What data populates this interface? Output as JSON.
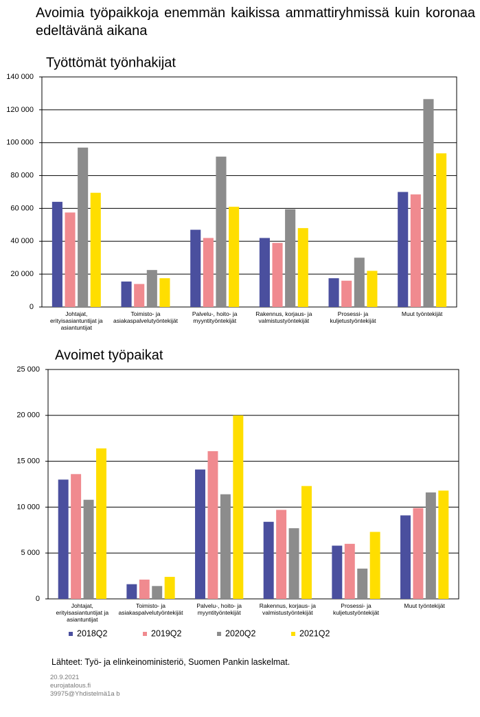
{
  "title": "Avoimia työpaikkoja enemmän kaikissa ammattiryhmissä kuin koronaa edeltävänä aikana",
  "source": "Lähteet: Työ- ja elinkeinoministeriö, Suomen Pankin laskelmat.",
  "footer": [
    "20.9.2021",
    "eurojatalous.fi",
    "39975@Yhdistelmä1a b"
  ],
  "chart_data": [
    {
      "type": "bar",
      "title": "Työttömät työnhakijat",
      "categories": [
        "Johtajat, erityisasiantuntijat ja asiantuntijat",
        "Toimisto- ja asiakaspalvelutyöntekijät",
        "Palvelu-, hoito- ja myyntityöntekijät",
        "Rakennus, korjaus- ja valmistustyöntekijät",
        "Prosessi- ja kuljetustyöntekijät",
        "Muut työntekijät"
      ],
      "series": [
        {
          "color": "#4a4f9e",
          "values": [
            64000,
            15500,
            47000,
            42000,
            17500,
            70000
          ]
        },
        {
          "color": "#f08a8f",
          "values": [
            57500,
            14000,
            42000,
            39000,
            16000,
            68500
          ]
        },
        {
          "color": "#8c8c8c",
          "values": [
            97000,
            22500,
            91500,
            59500,
            30000,
            126500
          ]
        },
        {
          "color": "#ffde00",
          "values": [
            69500,
            17500,
            61000,
            48000,
            22000,
            93500
          ]
        }
      ],
      "ylim": [
        0,
        140000
      ],
      "yticks": [
        0,
        {
          "value": 20000,
          "label": "20 000"
        },
        {
          "value": 40000,
          "label": "40 000"
        },
        {
          "value": 60000,
          "label": "60 000"
        },
        {
          "value": 80000,
          "label": "80 000"
        },
        {
          "value": 100000,
          "label": "100 000"
        },
        {
          "value": 120000,
          "label": "120 000"
        },
        {
          "value": 140000,
          "label": "140 000"
        }
      ],
      "grid": true
    },
    {
      "type": "bar",
      "title": "Avoimet työpaikat",
      "categories": [
        "Johtajat, erityisasiantuntijat ja asiantuntijat",
        "Toimisto- ja asiakaspalvelutyöntekijät",
        "Palvelu-, hoito- ja myyntityöntekijät",
        "Rakennus, korjaus- ja valmistustyöntekijät",
        "Prosessi- ja kuljetustyöntekijät",
        "Muut työntekijät"
      ],
      "series": [
        {
          "name": "2018Q2",
          "color": "#4a4f9e",
          "values": [
            13000,
            1600,
            14100,
            8400,
            5800,
            9100
          ]
        },
        {
          "name": "2019Q2",
          "color": "#f08a8f",
          "values": [
            13600,
            2100,
            16100,
            9700,
            6000,
            9900
          ]
        },
        {
          "name": "2020Q2",
          "color": "#8c8c8c",
          "values": [
            10800,
            1400,
            11400,
            7700,
            3300,
            11600
          ]
        },
        {
          "name": "2021Q2",
          "color": "#ffde00",
          "values": [
            16400,
            2400,
            20000,
            12300,
            7300,
            11800
          ]
        }
      ],
      "ylim": [
        0,
        25000
      ],
      "yticks": [
        0,
        {
          "value": 5000,
          "label": "5 000"
        },
        {
          "value": 10000,
          "label": "10 000"
        },
        {
          "value": 15000,
          "label": "15 000"
        },
        {
          "value": 20000,
          "label": "20 000"
        },
        {
          "value": 25000,
          "label": "25 000"
        }
      ],
      "grid": true
    }
  ]
}
